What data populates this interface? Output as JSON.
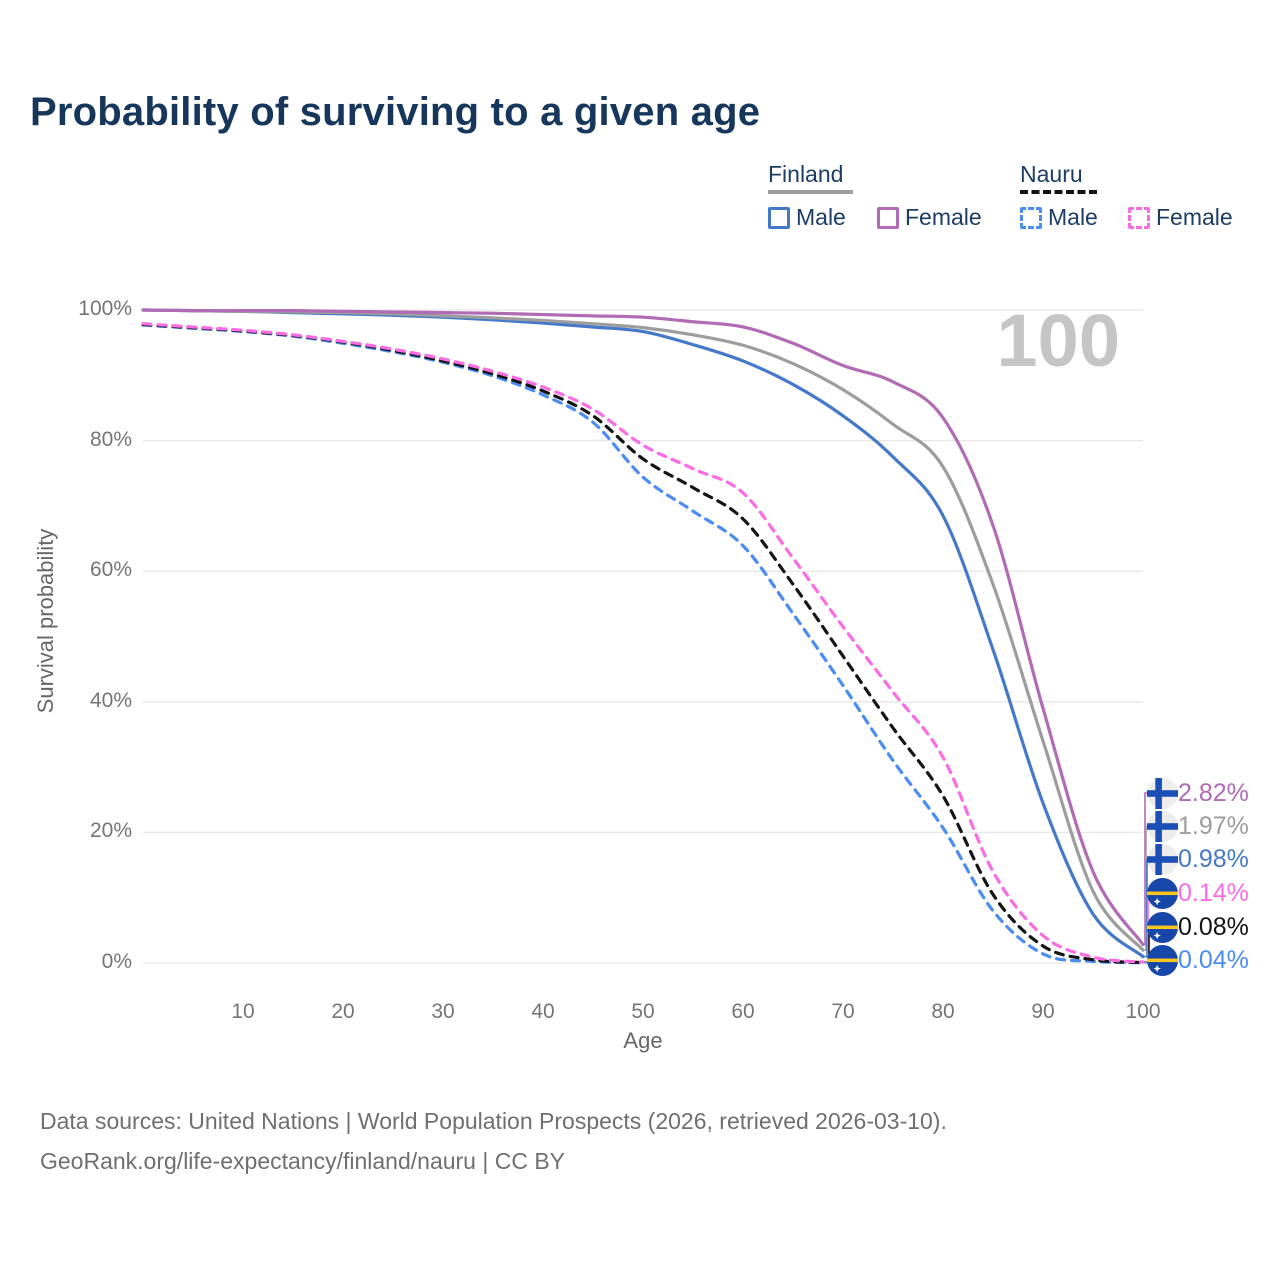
{
  "title": "Probability of surviving to a given age",
  "watermark_age": "100",
  "legend": {
    "finland": {
      "name": "Finland",
      "male": "Male",
      "female": "Female"
    },
    "nauru": {
      "name": "Nauru",
      "male": "Male",
      "female": "Female"
    }
  },
  "end_labels": [
    {
      "flag": "finland",
      "value": "2.82%",
      "series": "Finland Female",
      "color": "#b16ab4"
    },
    {
      "flag": "finland",
      "value": "1.97%",
      "series": "Finland Total",
      "color": "#9d9d9d"
    },
    {
      "flag": "finland",
      "value": "0.98%",
      "series": "Finland Male",
      "color": "#4478c8"
    },
    {
      "flag": "nauru",
      "value": "0.14%",
      "series": "Nauru Female",
      "color": "#fb6ce4"
    },
    {
      "flag": "nauru",
      "value": "0.08%",
      "series": "Nauru Total",
      "color": "#141414"
    },
    {
      "flag": "nauru",
      "value": "0.04%",
      "series": "Nauru Male",
      "color": "#4a8cf2"
    }
  ],
  "footer": {
    "line1": "Data sources: United Nations | World Population Prospects (2026, retrieved 2026-03-10).",
    "line2": "GeoRank.org/life-expectancy/finland/nauru | CC BY"
  },
  "chart_data": {
    "type": "line",
    "title": "Probability of surviving to a given age",
    "xlabel": "Age",
    "ylabel": "Survival probability",
    "xlim": [
      0,
      100
    ],
    "ylim": [
      0,
      100
    ],
    "grid": "horizontal",
    "legend_position": "top-right",
    "y_tick_labels": [
      "100%",
      "80%",
      "60%",
      "40%",
      "20%",
      "0%"
    ],
    "x_tick_labels": [
      "10",
      "20",
      "30",
      "40",
      "50",
      "60",
      "70",
      "80",
      "90",
      "100"
    ],
    "x": [
      0,
      5,
      10,
      15,
      20,
      25,
      30,
      35,
      40,
      45,
      50,
      55,
      60,
      65,
      70,
      75,
      80,
      85,
      90,
      95,
      100
    ],
    "series": [
      {
        "name": "Finland Female",
        "country": "Finland",
        "sex": "Female",
        "color": "#b16ab4",
        "dash": false,
        "end_label": "2.82%",
        "values": [
          100,
          99.9,
          99.9,
          99.9,
          99.8,
          99.7,
          99.6,
          99.5,
          99.3,
          99.1,
          98.9,
          98.2,
          97.4,
          94.9,
          91.5,
          89.0,
          83.5,
          67.0,
          39.0,
          14.0,
          2.82
        ]
      },
      {
        "name": "Finland Total",
        "country": "Finland",
        "sex": "Both",
        "color": "#9d9d9d",
        "dash": false,
        "end_label": "1.97%",
        "values": [
          100,
          99.9,
          99.8,
          99.7,
          99.6,
          99.4,
          99.1,
          98.8,
          98.4,
          97.9,
          97.3,
          96.2,
          94.6,
          91.8,
          87.8,
          82.5,
          76.0,
          58.0,
          34.0,
          11.0,
          1.97
        ]
      },
      {
        "name": "Finland Male",
        "country": "Finland",
        "sex": "Male",
        "color": "#4478c8",
        "dash": false,
        "end_label": "0.98%",
        "values": [
          100,
          99.9,
          99.8,
          99.6,
          99.4,
          99.2,
          98.9,
          98.5,
          98.0,
          97.4,
          96.7,
          94.7,
          92.2,
          88.6,
          83.8,
          77.5,
          68.5,
          48.0,
          24.5,
          7.5,
          0.98
        ]
      },
      {
        "name": "Nauru Female",
        "country": "Nauru",
        "sex": "Female",
        "color": "#fb6ce4",
        "dash": true,
        "end_label": "0.14%",
        "values": [
          97.9,
          97.4,
          96.9,
          96.2,
          95.2,
          94.0,
          92.5,
          90.6,
          88.2,
          84.8,
          79.3,
          75.7,
          72.0,
          62.0,
          51.5,
          41.5,
          31.5,
          14.0,
          4.2,
          0.9,
          0.14
        ]
      },
      {
        "name": "Nauru Total",
        "country": "Nauru",
        "sex": "Both",
        "color": "#141414",
        "dash": true,
        "end_label": "0.08%",
        "values": [
          97.8,
          97.3,
          96.8,
          96.1,
          95.1,
          93.8,
          92.2,
          90.2,
          87.6,
          83.8,
          77.2,
          72.8,
          68.0,
          58.0,
          47.0,
          36.0,
          25.6,
          10.5,
          2.6,
          0.5,
          0.08
        ]
      },
      {
        "name": "Nauru Male",
        "country": "Nauru",
        "sex": "Male",
        "color": "#4a8cf2",
        "dash": true,
        "end_label": "0.04%",
        "values": [
          97.7,
          97.2,
          96.7,
          96.0,
          94.9,
          93.6,
          92.0,
          89.9,
          87.0,
          82.8,
          74.4,
          69.2,
          63.9,
          53.5,
          42.5,
          31.0,
          20.7,
          8.0,
          1.4,
          0.25,
          0.04
        ]
      }
    ]
  }
}
